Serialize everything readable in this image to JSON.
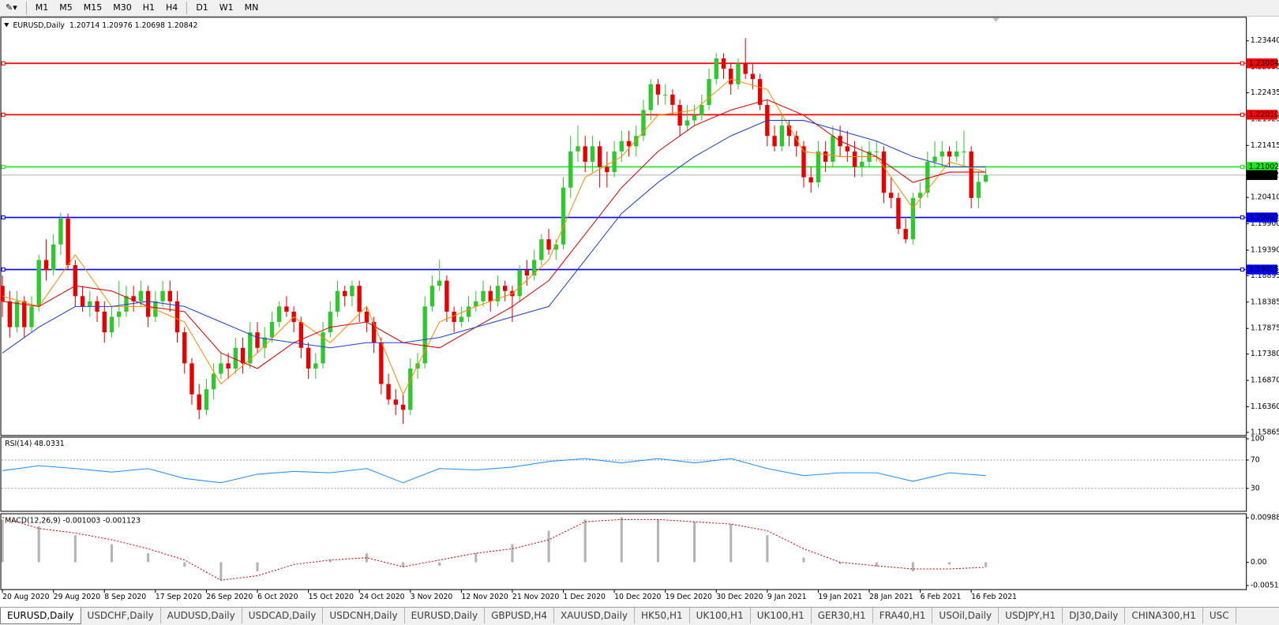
{
  "toolbar": {
    "timeframes": [
      "M1",
      "M5",
      "M15",
      "M30",
      "H1",
      "H4",
      "D1",
      "W1",
      "MN"
    ]
  },
  "chart_data": {
    "type": "candlestick",
    "symbol": "EURUSD,Daily",
    "up_color": "#2fc82f",
    "down_color": "#e80000",
    "ylim": [
      1.1582,
      1.2388
    ],
    "yticks": [
      {
        "value": 1.2344,
        "label": "1.23440"
      },
      1.22935,
      1.22435,
      1.21925,
      1.21415,
      {
        "value": 1.2041,
        "label": "1.20410"
      },
      {
        "value": 1.199,
        "label": "1.19900"
      },
      {
        "value": 1.1939,
        "label": "1.19390"
      },
      1.18895,
      1.18385,
      1.17875,
      {
        "value": 1.1738,
        "label": "1.17380"
      },
      {
        "value": 1.1687,
        "label": "1.16870"
      },
      {
        "value": 1.1636,
        "label": "1.16360"
      },
      1.15865
    ],
    "levels": [
      {
        "value": 1.23004,
        "color": "#ff0000"
      },
      {
        "value": {
          "value": 1.2201,
          "label": "1.22010"
        },
        "color": "#ff0000"
      },
      {
        "value": 1.21002,
        "color": "#1ee61e"
      },
      {
        "value": 1.20023,
        "color": "#0000ff"
      },
      {
        "value": 1.19015,
        "color": "#0000ff"
      }
    ],
    "categories": [
      "20 Aug 2020",
      null,
      null,
      null,
      null,
      null,
      null,
      "29 Aug 2020",
      null,
      null,
      null,
      null,
      null,
      null,
      "8 Sep 2020",
      null,
      null,
      null,
      null,
      null,
      null,
      "17 Sep 2020",
      null,
      null,
      null,
      null,
      null,
      null,
      "26 Sep 2020",
      null,
      null,
      null,
      null,
      null,
      null,
      "6 Oct 2020",
      null,
      null,
      null,
      null,
      null,
      null,
      "15 Oct 2020",
      null,
      null,
      null,
      null,
      null,
      null,
      "24 Oct 2020",
      null,
      null,
      null,
      null,
      null,
      null,
      "3 Nov 2020",
      null,
      null,
      null,
      null,
      null,
      null,
      "12 Nov 2020",
      null,
      null,
      null,
      null,
      null,
      null,
      "21 Nov 2020",
      null,
      null,
      null,
      null,
      null,
      null,
      "1 Dec 2020",
      null,
      null,
      null,
      null,
      null,
      null,
      "10 Dec 2020",
      null,
      null,
      null,
      null,
      null,
      null,
      "19 Dec 2020",
      null,
      null,
      null,
      null,
      null,
      null,
      "30 Dec 2020",
      null,
      null,
      null,
      null,
      null,
      null,
      "9 Jan 2021",
      null,
      null,
      null,
      null,
      null,
      null,
      "19 Jan 2021",
      null,
      null,
      null,
      null,
      null,
      null,
      "28 Jan 2021",
      null,
      null,
      null,
      null,
      null,
      null,
      "6 Feb 2021",
      null,
      null,
      null,
      null,
      null,
      null,
      "16 Feb 2021",
      null,
      null
    ],
    "ohlc": [
      [
        1.187,
        1.189,
        1.181,
        1.184
      ],
      [
        1.184,
        1.186,
        1.177,
        1.179
      ],
      [
        1.179,
        1.186,
        1.178,
        1.184
      ],
      [
        1.184,
        1.185,
        1.177,
        1.179
      ],
      [
        1.179,
        1.185,
        1.178,
        1.183
      ],
      [
        1.183,
        1.193,
        1.182,
        1.192
      ],
      [
        1.192,
        1.196,
        1.188,
        1.19
      ],
      [
        1.19,
        1.197,
        1.189,
        1.195
      ],
      [
        1.195,
        1.2011,
        1.193,
        1.2
      ],
      [
        1.2,
        1.201,
        1.19,
        1.191
      ],
      [
        1.191,
        1.192,
        1.183,
        1.185
      ],
      [
        1.185,
        1.187,
        1.182,
        1.183
      ],
      [
        1.183,
        1.186,
        1.181,
        1.184
      ],
      [
        1.184,
        1.185,
        1.18,
        1.182
      ],
      [
        1.182,
        1.184,
        1.176,
        1.178
      ],
      [
        1.178,
        1.183,
        1.177,
        1.181
      ],
      [
        1.181,
        1.188,
        1.179,
        1.182
      ],
      [
        1.182,
        1.187,
        1.181,
        1.185
      ],
      [
        1.185,
        1.187,
        1.182,
        1.184
      ],
      [
        1.184,
        1.188,
        1.183,
        1.186
      ],
      [
        1.186,
        1.187,
        1.179,
        1.181
      ],
      [
        1.181,
        1.186,
        1.18,
        1.184
      ],
      [
        1.184,
        1.188,
        1.183,
        1.186
      ],
      [
        1.186,
        1.188,
        1.182,
        1.184
      ],
      [
        1.184,
        1.186,
        1.176,
        1.178
      ],
      [
        1.178,
        1.179,
        1.17,
        1.172
      ],
      [
        1.172,
        1.173,
        1.164,
        1.166
      ],
      [
        1.166,
        1.168,
        1.1612,
        1.163
      ],
      [
        1.163,
        1.169,
        1.162,
        1.167
      ],
      [
        1.167,
        1.172,
        1.165,
        1.17
      ],
      [
        1.17,
        1.174,
        1.169,
        1.172
      ],
      [
        1.172,
        1.174,
        1.169,
        1.171
      ],
      [
        1.171,
        1.177,
        1.17,
        1.175
      ],
      [
        1.175,
        1.177,
        1.17,
        1.172
      ],
      [
        1.172,
        1.18,
        1.171,
        1.178
      ],
      [
        1.178,
        1.18,
        1.174,
        1.175
      ],
      [
        1.175,
        1.179,
        1.173,
        1.177
      ],
      [
        1.177,
        1.182,
        1.176,
        1.18
      ],
      [
        1.18,
        1.184,
        1.179,
        1.183
      ],
      [
        1.183,
        1.185,
        1.181,
        1.182
      ],
      [
        1.182,
        1.183,
        1.178,
        1.18
      ],
      [
        1.18,
        1.181,
        1.173,
        1.175
      ],
      [
        1.175,
        1.176,
        1.169,
        1.171
      ],
      [
        1.171,
        1.174,
        1.169,
        1.172
      ],
      [
        1.172,
        1.18,
        1.171,
        1.178
      ],
      [
        1.178,
        1.184,
        1.177,
        1.182
      ],
      [
        1.182,
        1.188,
        1.181,
        1.186
      ],
      [
        1.186,
        1.187,
        1.183,
        1.185
      ],
      [
        1.185,
        1.188,
        1.183,
        1.187
      ],
      [
        1.187,
        1.188,
        1.18,
        1.182
      ],
      [
        1.182,
        1.183,
        1.178,
        1.18
      ],
      [
        1.18,
        1.181,
        1.174,
        1.176
      ],
      [
        1.176,
        1.177,
        1.166,
        1.168
      ],
      [
        1.168,
        1.17,
        1.164,
        1.165
      ],
      [
        1.165,
        1.167,
        1.162,
        1.164
      ],
      [
        1.164,
        1.166,
        1.1603,
        1.163
      ],
      [
        1.163,
        1.173,
        1.162,
        1.171
      ],
      [
        1.171,
        1.174,
        1.169,
        1.172
      ],
      [
        1.172,
        1.185,
        1.171,
        1.183
      ],
      [
        1.183,
        1.189,
        1.182,
        1.187
      ],
      [
        1.187,
        1.192,
        1.186,
        1.188
      ],
      [
        1.188,
        1.189,
        1.18,
        1.182
      ],
      [
        1.182,
        1.183,
        1.178,
        1.18
      ],
      [
        1.18,
        1.183,
        1.179,
        1.181
      ],
      [
        1.181,
        1.185,
        1.18,
        1.183
      ],
      [
        1.183,
        1.186,
        1.182,
        1.184
      ],
      [
        1.184,
        1.188,
        1.183,
        1.186
      ],
      [
        1.186,
        1.187,
        1.182,
        1.184
      ],
      [
        1.184,
        1.189,
        1.183,
        1.187
      ],
      [
        1.187,
        1.188,
        1.184,
        1.186
      ],
      [
        1.186,
        1.187,
        1.18,
        1.185
      ],
      [
        1.185,
        1.191,
        1.184,
        1.19
      ],
      [
        1.19,
        1.192,
        1.187,
        1.189
      ],
      [
        1.189,
        1.194,
        1.188,
        1.192
      ],
      [
        1.192,
        1.197,
        1.191,
        1.196
      ],
      [
        1.196,
        1.198,
        1.193,
        1.194
      ],
      [
        1.194,
        1.196,
        1.192,
        1.195
      ],
      [
        1.195,
        1.208,
        1.194,
        1.206
      ],
      [
        1.206,
        1.216,
        1.204,
        1.213
      ],
      [
        1.213,
        1.218,
        1.211,
        1.214
      ],
      [
        1.214,
        1.216,
        1.209,
        1.211
      ],
      [
        1.211,
        1.216,
        1.209,
        1.214
      ],
      [
        1.214,
        1.215,
        1.206,
        1.21
      ],
      [
        1.21,
        1.213,
        1.206,
        1.209
      ],
      [
        1.209,
        1.215,
        1.208,
        1.213
      ],
      [
        1.213,
        1.217,
        1.211,
        1.215
      ],
      [
        1.215,
        1.217,
        1.212,
        1.214
      ],
      [
        1.214,
        1.218,
        1.212,
        1.216
      ],
      [
        1.216,
        1.223,
        1.215,
        1.221
      ],
      [
        1.221,
        1.227,
        1.219,
        1.226
      ],
      [
        1.226,
        1.227,
        1.222,
        1.224
      ],
      [
        1.224,
        1.226,
        1.222,
        1.224
      ],
      [
        1.224,
        1.225,
        1.22,
        1.222
      ],
      [
        1.222,
        1.223,
        1.216,
        1.218
      ],
      [
        1.218,
        1.222,
        1.217,
        1.219
      ],
      [
        1.219,
        1.222,
        1.218,
        1.22
      ],
      [
        1.22,
        1.224,
        1.219,
        1.222
      ],
      [
        1.222,
        1.229,
        1.221,
        1.227
      ],
      [
        1.227,
        1.232,
        1.226,
        1.231
      ],
      [
        1.231,
        1.232,
        1.227,
        1.229
      ],
      [
        1.229,
        1.23,
        1.224,
        1.226
      ],
      [
        1.226,
        1.231,
        1.225,
        1.23
      ],
      [
        1.23,
        1.2349,
        1.227,
        1.228
      ],
      [
        1.228,
        1.23,
        1.225,
        1.227
      ],
      [
        1.227,
        1.228,
        1.221,
        1.222
      ],
      [
        1.222,
        1.223,
        1.214,
        1.216
      ],
      [
        1.216,
        1.218,
        1.213,
        1.214
      ],
      [
        1.214,
        1.22,
        1.213,
        1.218
      ],
      [
        1.218,
        1.219,
        1.214,
        1.216
      ],
      [
        1.216,
        1.217,
        1.212,
        1.214
      ],
      [
        1.214,
        1.215,
        1.206,
        1.208
      ],
      [
        1.208,
        1.21,
        1.205,
        1.207
      ],
      [
        1.207,
        1.215,
        1.206,
        1.213
      ],
      [
        1.213,
        1.215,
        1.209,
        1.211
      ],
      [
        1.211,
        1.218,
        1.21,
        1.216
      ],
      [
        1.216,
        1.218,
        1.212,
        1.214
      ],
      [
        1.214,
        1.217,
        1.211,
        1.213
      ],
      [
        1.213,
        1.215,
        1.208,
        1.21
      ],
      [
        1.21,
        1.214,
        1.208,
        1.211
      ],
      [
        1.211,
        1.215,
        1.21,
        1.213
      ],
      [
        1.213,
        1.215,
        1.211,
        1.213
      ],
      [
        1.213,
        1.214,
        1.203,
        1.205
      ],
      [
        1.205,
        1.208,
        1.202,
        1.204
      ],
      [
        1.204,
        1.205,
        1.197,
        1.198
      ],
      [
        1.198,
        1.2,
        1.1952,
        1.196
      ],
      [
        1.196,
        1.205,
        1.195,
        1.204
      ],
      [
        1.204,
        1.207,
        1.202,
        1.205
      ],
      [
        1.205,
        1.213,
        1.204,
        1.211
      ],
      [
        1.211,
        1.215,
        1.21,
        1.212
      ],
      [
        1.212,
        1.215,
        1.21,
        1.213
      ],
      [
        1.213,
        1.214,
        1.21,
        1.212
      ],
      [
        1.212,
        1.215,
        1.211,
        1.213
      ],
      [
        1.213,
        1.217,
        1.21,
        1.213
      ],
      [
        1.213,
        1.214,
        1.202,
        1.204
      ],
      [
        1.204,
        1.209,
        1.202,
        1.2071
      ],
      [
        1.20714,
        1.20976,
        1.20698,
        1.20842
      ]
    ],
    "indicator_x": [
      0,
      5,
      10,
      15,
      20,
      25,
      30,
      35,
      40,
      45,
      50,
      55,
      60,
      65,
      70,
      75,
      80,
      85,
      90,
      95,
      100,
      105,
      110,
      115,
      120,
      125,
      130,
      135
    ],
    "moving_averages": [
      {
        "color": "#ff8c00",
        "values": [
          1.185,
          1.183,
          1.193,
          1.183,
          1.183,
          1.18,
          1.168,
          1.174,
          1.181,
          1.176,
          1.183,
          1.166,
          1.18,
          1.183,
          1.1855,
          1.192,
          1.208,
          1.212,
          1.22,
          1.221,
          1.227,
          1.225,
          1.213,
          1.212,
          1.212,
          1.202,
          1.211,
          1.209
        ]
      },
      {
        "color": "#e00000",
        "values": [
          1.184,
          1.183,
          1.187,
          1.186,
          1.183,
          1.182,
          1.174,
          1.171,
          1.176,
          1.179,
          1.18,
          1.176,
          1.175,
          1.179,
          1.183,
          1.188,
          1.197,
          1.206,
          1.213,
          1.218,
          1.221,
          1.223,
          1.22,
          1.215,
          1.212,
          1.207,
          1.209,
          1.209
        ]
      },
      {
        "color": "#1f3fd0",
        "values": [
          1.174,
          1.179,
          1.183,
          1.183,
          1.184,
          1.183,
          1.18,
          1.177,
          1.176,
          1.175,
          1.176,
          1.176,
          1.177,
          1.179,
          1.181,
          1.183,
          1.192,
          1.201,
          1.207,
          1.212,
          1.216,
          1.219,
          1.219,
          1.217,
          1.215,
          1.212,
          1.21,
          1.21
        ]
      }
    ],
    "rsi": {
      "label": "RSI(14)",
      "color": "#1e90ff",
      "ylim": [
        0,
        100
      ],
      "yticks": [
        100,
        70,
        30
      ],
      "levels": [
        70,
        30
      ],
      "values": [
        55,
        62,
        58,
        53,
        58,
        44,
        38,
        50,
        54,
        52,
        58,
        38,
        58,
        56,
        60,
        68,
        72,
        66,
        72,
        66,
        72,
        58,
        48,
        52,
        52,
        40,
        52,
        48.0331
      ]
    },
    "macd": {
      "label": "MACD(12,26,9)",
      "histogram_color": "#b4b4b4",
      "signal_color": "#e00000",
      "ylim": [
        -0.0059,
        0.0106
      ],
      "yticks": [
        0.009885,
        {
          "value": 0,
          "label": "0.00"
        },
        -0.005183
      ],
      "histogram": [
        0.0095,
        0.008,
        0.006,
        0.004,
        0.002,
        -0.001,
        -0.004,
        -0.002,
        0.0,
        0.0005,
        0.002,
        -0.001,
        -0.0008,
        0.002,
        0.004,
        0.007,
        0.0095,
        0.01,
        0.0095,
        0.009,
        0.0085,
        0.006,
        0.001,
        -0.0004,
        -0.001,
        -0.002,
        -0.0005,
        -0.001003
      ],
      "signal": [
        0.01,
        0.0075,
        0.0065,
        0.005,
        0.003,
        0.0005,
        -0.004,
        -0.003,
        -0.0005,
        0.0005,
        0.001,
        -0.001,
        0.0005,
        0.002,
        0.003,
        0.005,
        0.009,
        0.0095,
        0.0095,
        0.009,
        0.0085,
        0.007,
        0.003,
        0.0,
        -0.0008,
        -0.0015,
        -0.0015,
        -0.001123
      ]
    }
  },
  "tabs": {
    "active": 0,
    "items": [
      "EURUSD,Daily",
      "USDCHF,Daily",
      "AUDUSD,Daily",
      "USDCAD,Daily",
      "USDCNH,Daily",
      "EURUSD,Daily",
      "GBPUSD,H4",
      "XAUUSD,Daily",
      "HK50,H1",
      "UK100,H1",
      "UK100,H1",
      "GER30,H1",
      "FRA40,H1",
      "USOil,Daily",
      "USDJPY,H1",
      "DJ30,Daily",
      "CHINA300,H1",
      "USC"
    ]
  }
}
